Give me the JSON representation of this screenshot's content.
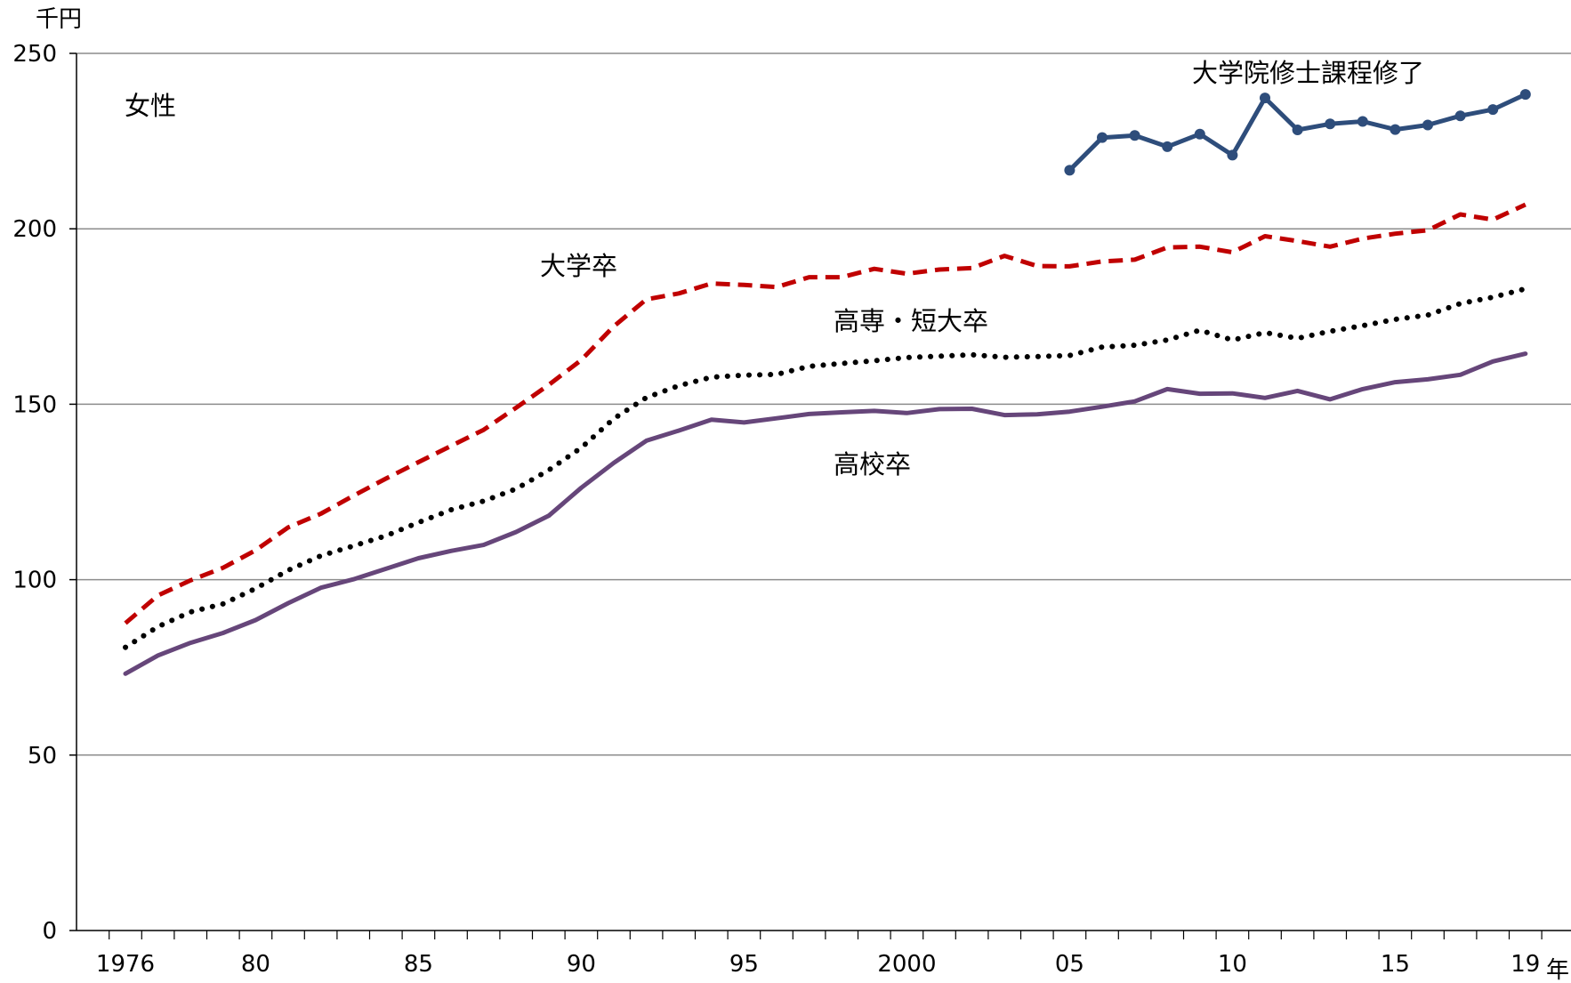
{
  "chart_data": {
    "type": "line",
    "title": "",
    "panel_label": "女性",
    "y_unit": "千円",
    "x_unit": "年",
    "xlabel": "",
    "ylabel": "",
    "ylim": [
      0,
      250
    ],
    "y_ticks": [
      0,
      50,
      100,
      150,
      200,
      250
    ],
    "y_tick_labels": [
      "0",
      "50",
      "100",
      "150",
      "200",
      "250"
    ],
    "xlim": [
      1976,
      2019
    ],
    "x_ticks": [
      1976,
      1980,
      1985,
      1990,
      1995,
      2000,
      2005,
      2010,
      2015,
      2019
    ],
    "x_tick_labels": [
      "1976",
      "80",
      "85",
      "90",
      "95",
      "2000",
      "05",
      "10",
      "15",
      "19"
    ],
    "grid": "horizontal",
    "legend": "inline labels",
    "series": [
      {
        "name": "大学院修士課程修了",
        "color": "#2e4d7b",
        "style": "solid-markers",
        "x": [
          2005,
          2006,
          2007,
          2008,
          2009,
          2010,
          2011,
          2012,
          2013,
          2014,
          2015,
          2016,
          2017,
          2018,
          2019
        ],
        "values": [
          216.7,
          226.0,
          226.6,
          223.4,
          227.0,
          221.0,
          237.3,
          228.2,
          229.9,
          230.6,
          228.3,
          229.6,
          232.2,
          234.0,
          238.3
        ]
      },
      {
        "name": "大学卒",
        "color": "#c00000",
        "style": "dashed",
        "x": [
          1976,
          1977,
          1978,
          1979,
          1980,
          1981,
          1982,
          1983,
          1984,
          1985,
          1986,
          1987,
          1988,
          1989,
          1990,
          1991,
          1992,
          1993,
          1994,
          1995,
          1996,
          1997,
          1998,
          1999,
          2000,
          2001,
          2002,
          2003,
          2004,
          2005,
          2006,
          2007,
          2008,
          2009,
          2010,
          2011,
          2012,
          2013,
          2014,
          2015,
          2016,
          2017,
          2018,
          2019
        ],
        "values": [
          87.6,
          95.5,
          99.8,
          103.4,
          108.4,
          114.9,
          118.8,
          123.9,
          128.8,
          133.5,
          138.1,
          142.7,
          149.0,
          155.5,
          162.6,
          172.2,
          179.9,
          181.6,
          184.4,
          184.0,
          183.4,
          186.2,
          186.2,
          188.6,
          187.2,
          188.4,
          188.8,
          192.3,
          189.4,
          189.3,
          190.7,
          191.2,
          194.7,
          194.9,
          193.3,
          197.9,
          196.5,
          194.9,
          197.2,
          198.6,
          199.6,
          204.1,
          202.6,
          206.9
        ]
      },
      {
        "name": "高専・短大卒",
        "color": "#000000",
        "style": "dotted",
        "x": [
          1976,
          1977,
          1978,
          1979,
          1980,
          1981,
          1982,
          1983,
          1984,
          1985,
          1986,
          1987,
          1988,
          1989,
          1990,
          1991,
          1992,
          1993,
          1994,
          1995,
          1996,
          1997,
          1998,
          1999,
          2000,
          2001,
          2002,
          2003,
          2004,
          2005,
          2006,
          2007,
          2008,
          2009,
          2010,
          2011,
          2012,
          2013,
          2014,
          2015,
          2016,
          2017,
          2018,
          2019
        ],
        "values": [
          80.7,
          86.6,
          90.8,
          93.1,
          97.5,
          102.7,
          106.8,
          109.6,
          112.5,
          116.3,
          119.9,
          122.4,
          125.9,
          131.2,
          137.6,
          145.9,
          151.9,
          155.3,
          157.7,
          158.3,
          158.5,
          160.8,
          161.6,
          162.4,
          163.3,
          163.7,
          164.1,
          163.4,
          163.6,
          163.9,
          166.3,
          166.8,
          168.3,
          171.1,
          168.3,
          170.4,
          168.8,
          170.8,
          172.4,
          174.2,
          175.4,
          178.7,
          180.5,
          182.9
        ]
      },
      {
        "name": "高校卒",
        "color": "#66467a",
        "style": "solid",
        "x": [
          1976,
          1977,
          1978,
          1979,
          1980,
          1981,
          1982,
          1983,
          1984,
          1985,
          1986,
          1987,
          1988,
          1989,
          1990,
          1991,
          1992,
          1993,
          1994,
          1995,
          1996,
          1997,
          1998,
          1999,
          2000,
          2001,
          2002,
          2003,
          2004,
          2005,
          2006,
          2007,
          2008,
          2009,
          2010,
          2011,
          2012,
          2013,
          2014,
          2015,
          2016,
          2017,
          2018,
          2019
        ],
        "values": [
          73.2,
          78.4,
          82.0,
          84.8,
          88.5,
          93.3,
          97.7,
          100.1,
          103.1,
          106.1,
          108.2,
          109.9,
          113.6,
          118.2,
          126.2,
          133.3,
          139.6,
          142.5,
          145.6,
          144.8,
          146.0,
          147.2,
          147.7,
          148.1,
          147.5,
          148.6,
          148.7,
          146.9,
          147.1,
          147.9,
          149.3,
          150.8,
          154.3,
          153.0,
          153.1,
          151.8,
          153.8,
          151.4,
          154.3,
          156.3,
          157.1,
          158.4,
          162.2,
          164.4
        ]
      }
    ]
  }
}
